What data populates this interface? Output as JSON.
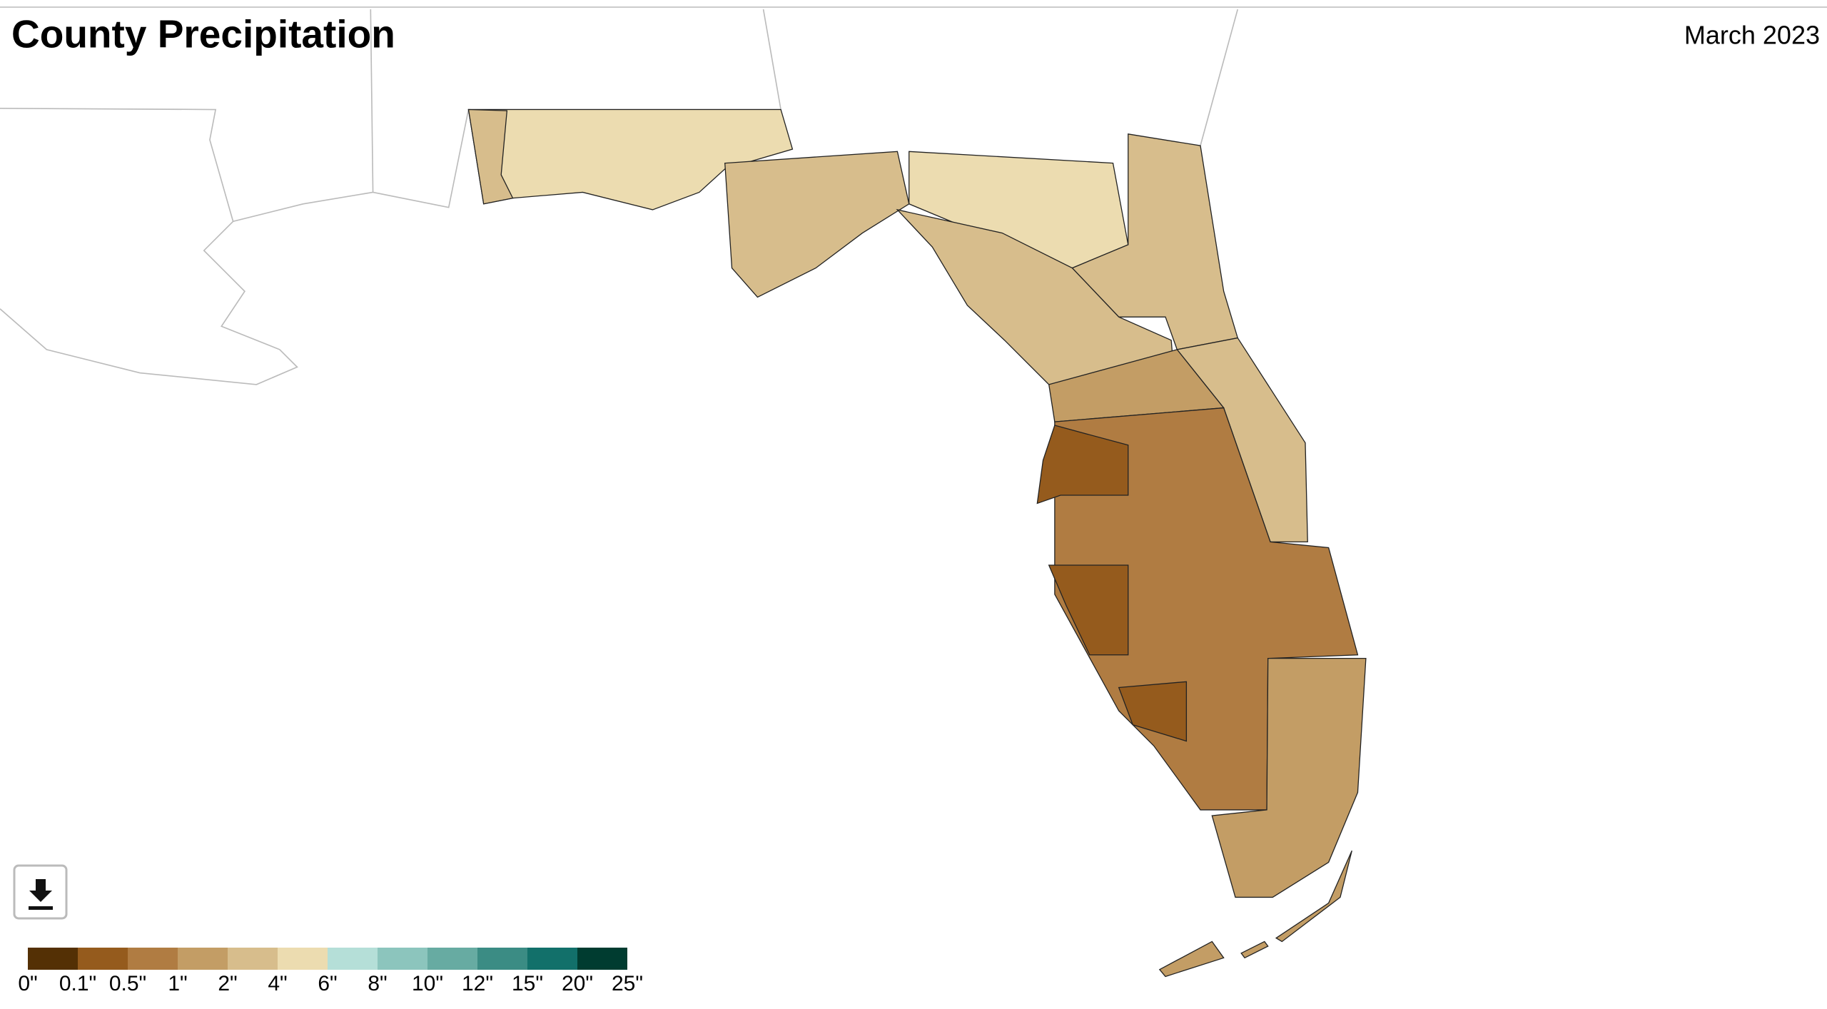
{
  "header": {
    "title": "County Precipitation",
    "period": "March 2023"
  },
  "legend": {
    "labels": [
      "0\"",
      "0.1\"",
      "0.5\"",
      "1\"",
      "2\"",
      "4\"",
      "6\"",
      "8\"",
      "10\"",
      "12\"",
      "15\"",
      "20\"",
      "25\""
    ],
    "colors": [
      "#543005",
      "#955b1d",
      "#b07c42",
      "#c39d65",
      "#d7bd8c",
      "#ecdcb0",
      "#b5dfd8",
      "#8cc5bd",
      "#67aba2",
      "#3b8c84",
      "#12706a",
      "#003c30"
    ]
  }
}
